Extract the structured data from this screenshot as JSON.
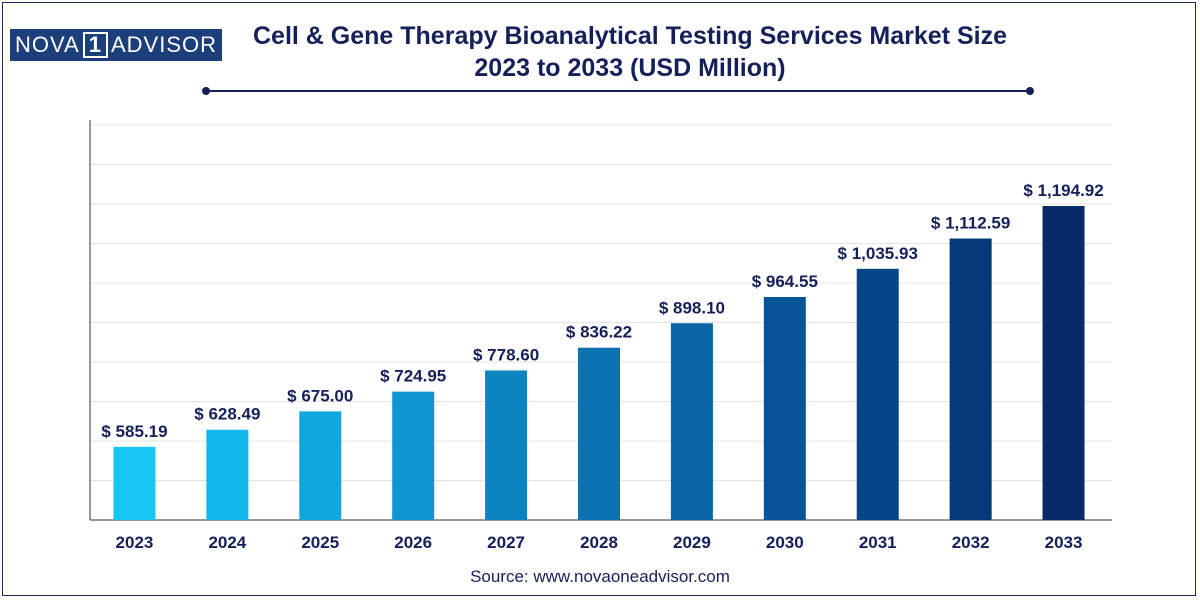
{
  "logo": {
    "left": "NOVA",
    "middle": "1",
    "right": "ADVISOR"
  },
  "title": {
    "line1": "Cell & Gene Therapy Bioanalytical Testing Services Market Size",
    "line2": "2023 to 2033 (USD Million)"
  },
  "source": "Source: www.novaoneadvisor.com",
  "colors": {
    "title": "#15205a",
    "bars": [
      "#17c7f3",
      "#13b8ec",
      "#11a7df",
      "#0f95cf",
      "#0d84c0",
      "#0b73b2",
      "#0964a4",
      "#075596",
      "#064687",
      "#05397a",
      "#062a6a"
    ]
  },
  "chart_data": {
    "type": "bar",
    "title": "Cell & Gene Therapy Bioanalytical Testing Services Market Size 2023 to 2033 (USD Million)",
    "categories": [
      "2023",
      "2024",
      "2025",
      "2026",
      "2027",
      "2028",
      "2029",
      "2030",
      "2031",
      "2032",
      "2033"
    ],
    "values": [
      585.19,
      628.49,
      675.0,
      724.95,
      778.6,
      836.22,
      898.1,
      964.55,
      1035.93,
      1112.59,
      1194.92
    ],
    "labels": [
      "$ 585.19",
      "$ 628.49",
      "$ 675.00",
      "$ 724.95",
      "$ 778.60",
      "$ 836.22",
      "$ 898.10",
      "$ 964.55",
      "$ 1,035.93",
      "$ 1,112.59",
      "$ 1,194.92"
    ],
    "xlabel": "",
    "ylabel": "",
    "ylim": [
      400,
      1400
    ],
    "grid": true,
    "legend": "none"
  }
}
